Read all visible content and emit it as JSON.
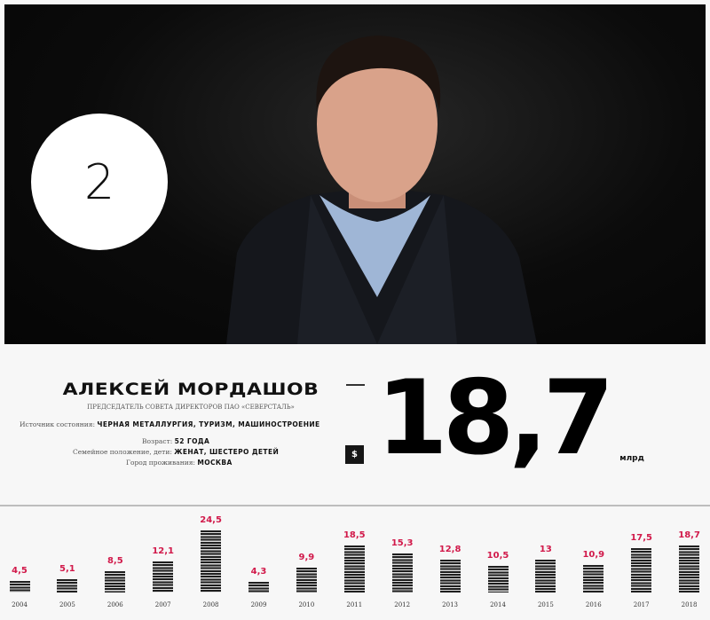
{
  "profile": {
    "rank": "2",
    "name": "АЛЕКСЕЙ МОРДАШОВ",
    "position": "ПРЕДСЕДАТЕЛЬ СОВЕТА ДИРЕКТОРОВ ПАО «СЕВЕРСТАЛЬ»",
    "source_label": "Источник состояния:",
    "source_value": "ЧЕРНАЯ МЕТАЛЛУРГИЯ, ТУРИЗМ, МАШИНОСТРОЕНИЕ",
    "age_label": "Возраст:",
    "age_value": "52 ГОДА",
    "family_label": "Семейное положение, дети:",
    "family_value": "ЖЕНАТ, ШЕСТЕРО ДЕТЕЙ",
    "city_label": "Город проживания:",
    "city_value": "МОСКВА"
  },
  "wealth": {
    "currency": "$",
    "value": "18,7",
    "unit": "млрд"
  },
  "colors": {
    "accent": "#d1194a",
    "bar": "#1e1e1e"
  },
  "chart_data": {
    "type": "bar",
    "categories": [
      "2004",
      "2005",
      "2006",
      "2007",
      "2008",
      "2009",
      "2010",
      "2011",
      "2012",
      "2013",
      "2014",
      "2015",
      "2016",
      "2017",
      "2018"
    ],
    "values": [
      4.5,
      5.1,
      8.5,
      12.1,
      24.5,
      4.3,
      9.9,
      18.5,
      15.3,
      12.8,
      10.5,
      13,
      10.9,
      17.5,
      18.7
    ],
    "labels": [
      "4,5",
      "5,1",
      "8,5",
      "12,1",
      "24,5",
      "4,3",
      "9,9",
      "18,5",
      "15,3",
      "12,8",
      "10,5",
      "13",
      "10,9",
      "17,5",
      "18,7"
    ],
    "ylim": [
      0,
      25
    ]
  }
}
